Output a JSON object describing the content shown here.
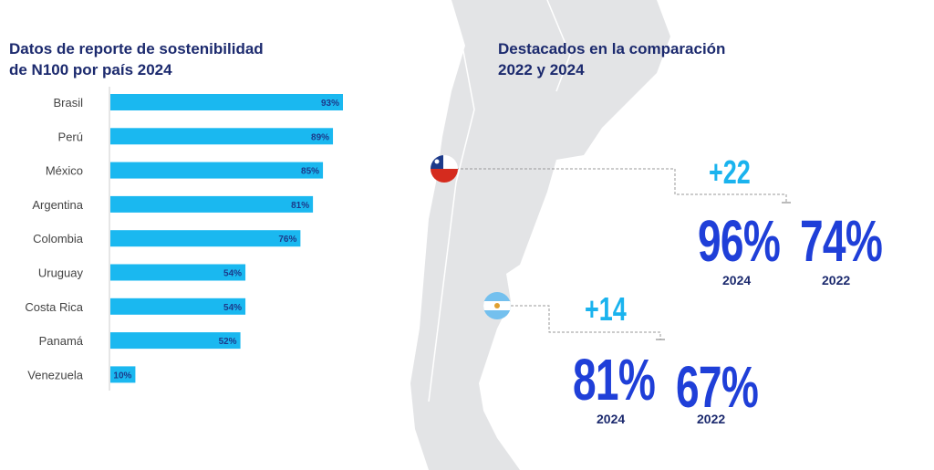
{
  "chart_data": {
    "type": "bar",
    "orientation": "horizontal",
    "title": "Datos de reporte de sostenibilidad de N100 por país 2024",
    "title_lines": [
      "Datos de reporte de sostenibilidad",
      "de N100 por país 2024"
    ],
    "categories": [
      "Brasil",
      "Perú",
      "México",
      "Argentina",
      "Colombia",
      "Uruguay",
      "Costa Rica",
      "Panamá",
      "Venezuela"
    ],
    "values": [
      93,
      89,
      85,
      81,
      76,
      54,
      54,
      52,
      10
    ],
    "value_labels": [
      "93%",
      "89%",
      "85%",
      "81%",
      "76%",
      "54%",
      "54%",
      "52%",
      "10%"
    ],
    "xlim": [
      0,
      100
    ],
    "xlabel": "",
    "ylabel": "",
    "grid": false,
    "bar_color": "#1ab8f0"
  },
  "highlights": {
    "title_lines": [
      "Destacados en la comparación",
      "2022 y 2024"
    ],
    "items": [
      {
        "country": "Chile",
        "flag": "chile-flag",
        "delta": "+22",
        "value_2024": "96%",
        "year_2024": "2024",
        "value_2022": "74%",
        "year_2022": "2022"
      },
      {
        "country": "Argentina",
        "flag": "argentina-flag",
        "delta": "+14",
        "value_2024": "81%",
        "year_2024": "2024",
        "value_2022": "67%",
        "year_2022": "2022"
      }
    ]
  },
  "colors": {
    "title": "#1c2a6e",
    "big_number": "#1f3fd8",
    "delta": "#1ab3ee",
    "map": "#e3e4e6"
  }
}
